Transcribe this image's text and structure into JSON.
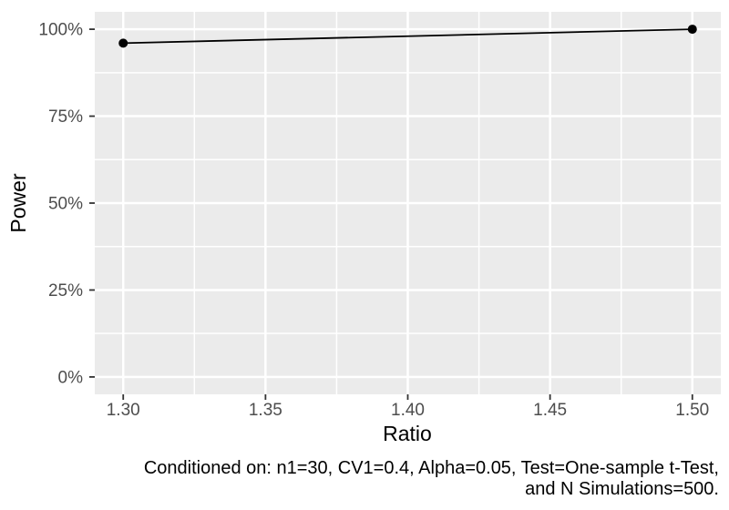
{
  "chart_data": {
    "type": "line",
    "title": "",
    "xlabel": "Ratio",
    "ylabel": "Power",
    "caption_lines": [
      "Conditioned on: n1=30, CV1=0.4, Alpha=0.05, Test=One-sample t-Test,",
      "and N Simulations=500."
    ],
    "x": [
      1.3,
      1.5
    ],
    "series": [
      {
        "name": "Power",
        "values": [
          0.96,
          1.0
        ]
      }
    ],
    "xlim": [
      1.29,
      1.51
    ],
    "ylim": [
      -0.05,
      1.05
    ],
    "x_ticks": [
      {
        "value": 1.3,
        "label": "1.30"
      },
      {
        "value": 1.35,
        "label": "1.35"
      },
      {
        "value": 1.4,
        "label": "1.40"
      },
      {
        "value": 1.45,
        "label": "1.45"
      },
      {
        "value": 1.5,
        "label": "1.50"
      }
    ],
    "y_ticks": [
      {
        "value": 0.0,
        "label": "0%"
      },
      {
        "value": 0.25,
        "label": "25%"
      },
      {
        "value": 0.5,
        "label": "50%"
      },
      {
        "value": 0.75,
        "label": "75%"
      },
      {
        "value": 1.0,
        "label": "100%"
      }
    ],
    "x_minor": [
      1.325,
      1.375,
      1.425,
      1.475
    ],
    "y_minor": [
      0.125,
      0.375,
      0.625,
      0.875
    ],
    "grid": true,
    "legend": "none",
    "colors": {
      "background": "#FFFFFF",
      "panel_bg": "#EBEBEB",
      "grid": "#FFFFFF",
      "line": "#000000",
      "point": "#000000",
      "tick_label": "#4D4D4D",
      "tick_mark": "#333333",
      "axis_title": "#000000",
      "caption": "#000000"
    }
  }
}
